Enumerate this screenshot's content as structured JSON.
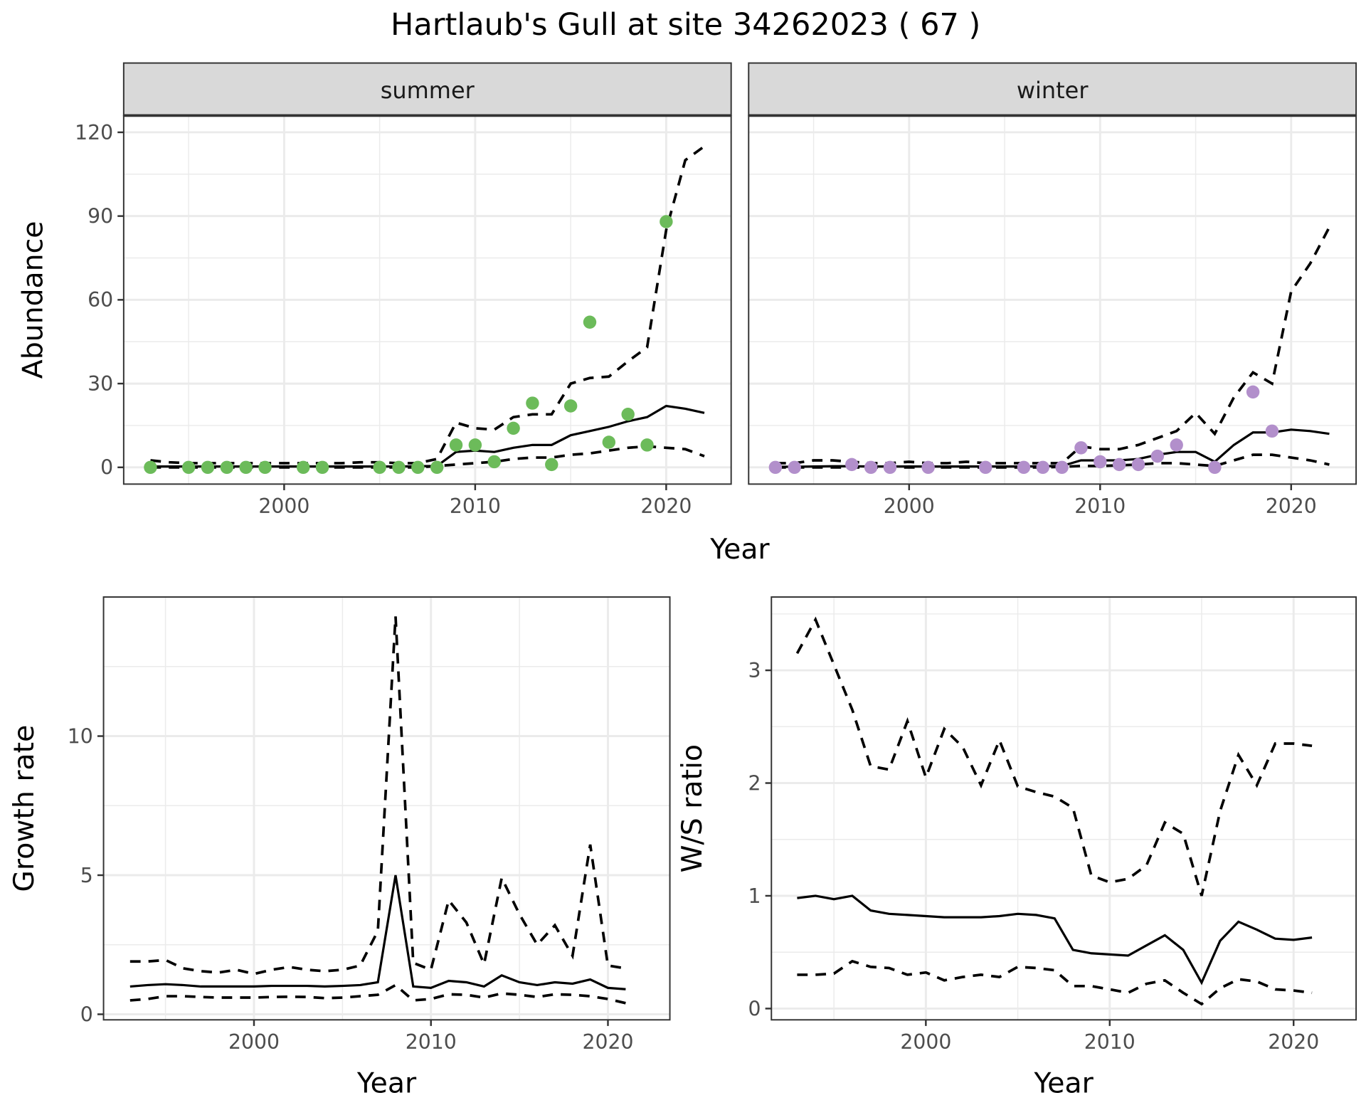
{
  "title": "Hartlaub's Gull at site 34262023 ( 67 )",
  "colors": {
    "summer": "#6CBB5A",
    "winter": "#B28FCB",
    "line": "#000000",
    "strip": "#D9D9D9",
    "grid": "#EBEBEB"
  },
  "chart_data": [
    {
      "type": "scatter+line",
      "facet": "summer",
      "xlabel": "Year",
      "ylabel": "Abundance",
      "xlim": [
        1991.6,
        2023.4
      ],
      "ylim": [
        -6,
        126
      ],
      "xticks": [
        2000,
        2010,
        2020
      ],
      "yticks": [
        0,
        30,
        60,
        90,
        120
      ],
      "points": {
        "x": [
          1993,
          1995,
          1996,
          1997,
          1998,
          1999,
          2001,
          2002,
          2005,
          2006,
          2007,
          2008,
          2009,
          2010,
          2011,
          2012,
          2013,
          2014,
          2015,
          2016,
          2017,
          2018,
          2019,
          2020
        ],
        "y": [
          0,
          0,
          0,
          0,
          0,
          0,
          0,
          0,
          0,
          0,
          0,
          0,
          8,
          8,
          2,
          14,
          23,
          1,
          22,
          52,
          9,
          19,
          8,
          88
        ]
      },
      "years": [
        1993,
        1994,
        1995,
        1996,
        1997,
        1998,
        1999,
        2000,
        2001,
        2002,
        2003,
        2004,
        2005,
        2006,
        2007,
        2008,
        2009,
        2010,
        2011,
        2012,
        2013,
        2014,
        2015,
        2016,
        2017,
        2018,
        2019,
        2020,
        2021,
        2022
      ],
      "mean": [
        0.3,
        0.3,
        0.3,
        0.3,
        0.3,
        0.3,
        0.3,
        0.3,
        0.3,
        0.3,
        0.3,
        0.3,
        0.3,
        0.3,
        0.4,
        0.5,
        5.5,
        6,
        5.5,
        7,
        8,
        8,
        11.5,
        13,
        14.5,
        16.5,
        18,
        22,
        21,
        19.5
      ],
      "upper": [
        2.5,
        1.8,
        1.5,
        1.5,
        1.5,
        1.5,
        1.5,
        1.5,
        1.5,
        1.5,
        1.5,
        1.8,
        1.8,
        1.5,
        1.5,
        3,
        16,
        14,
        13.5,
        18,
        19,
        19,
        30,
        32,
        32.5,
        38,
        43,
        85,
        110,
        115
      ],
      "lower": [
        0,
        0,
        0,
        0,
        0,
        0,
        0,
        0,
        0,
        0,
        0,
        0,
        0,
        0,
        0,
        0.5,
        1,
        1.5,
        2,
        3,
        3.5,
        3.5,
        4.5,
        5,
        6,
        7,
        7.5,
        7,
        6.5,
        4
      ]
    },
    {
      "type": "scatter+line",
      "facet": "winter",
      "xlabel": "Year",
      "ylabel": "Abundance",
      "xlim": [
        1991.6,
        2023.4
      ],
      "ylim": [
        -6,
        126
      ],
      "xticks": [
        2000,
        2010,
        2020
      ],
      "yticks": [
        0,
        30,
        60,
        90,
        120
      ],
      "points": {
        "x": [
          1993,
          1994,
          1997,
          1998,
          1999,
          2001,
          2004,
          2006,
          2007,
          2008,
          2009,
          2010,
          2011,
          2012,
          2013,
          2014,
          2016,
          2018,
          2019
        ],
        "y": [
          0,
          0,
          1,
          0,
          0,
          0,
          0,
          0,
          0,
          0,
          7,
          2,
          1,
          1,
          4,
          8,
          0,
          27,
          13
        ]
      },
      "years": [
        1993,
        1994,
        1995,
        1996,
        1997,
        1998,
        1999,
        2000,
        2001,
        2002,
        2003,
        2004,
        2005,
        2006,
        2007,
        2008,
        2009,
        2010,
        2011,
        2012,
        2013,
        2014,
        2015,
        2016,
        2017,
        2018,
        2019,
        2020,
        2021,
        2022
      ],
      "mean": [
        0.2,
        0.2,
        0.3,
        0.4,
        0.4,
        0.3,
        0.3,
        0.3,
        0.3,
        0.3,
        0.3,
        0.3,
        0.3,
        0.3,
        0.4,
        0.5,
        2.5,
        2.5,
        2.5,
        3,
        4.5,
        5.5,
        5.5,
        2,
        8,
        12.5,
        12.5,
        13.5,
        13,
        12
      ],
      "upper": [
        1.5,
        1.5,
        2.5,
        2.5,
        2,
        1.5,
        1.5,
        2,
        1.5,
        1.5,
        2,
        1.5,
        1.5,
        1.5,
        1.5,
        1.5,
        7.5,
        6.5,
        6.5,
        8,
        10.5,
        13,
        19.5,
        12,
        25,
        34,
        30,
        63,
        73,
        86
      ],
      "lower": [
        0,
        0,
        0,
        0,
        0,
        0,
        0,
        0,
        0,
        0,
        0,
        0,
        0,
        0,
        0,
        0.2,
        0.5,
        0.5,
        0.7,
        1,
        1.5,
        1.5,
        1,
        0.5,
        2.5,
        4.5,
        4.5,
        3.5,
        2.5,
        1
      ]
    },
    {
      "type": "line",
      "xlabel": "Year",
      "ylabel": "Growth rate",
      "xlim": [
        1991.5,
        2023.5
      ],
      "ylim": [
        -0.2,
        15
      ],
      "xticks": [
        2000,
        2010,
        2020
      ],
      "yticks": [
        0,
        5,
        10
      ],
      "years": [
        1993,
        1994,
        1995,
        1996,
        1997,
        1998,
        1999,
        2000,
        2001,
        2002,
        2003,
        2004,
        2005,
        2006,
        2007,
        2008,
        2009,
        2010,
        2011,
        2012,
        2013,
        2014,
        2015,
        2016,
        2017,
        2018,
        2019,
        2020,
        2021
      ],
      "mean": [
        1.0,
        1.05,
        1.08,
        1.05,
        1.0,
        1.0,
        1.0,
        1.0,
        1.02,
        1.02,
        1.02,
        1.0,
        1.02,
        1.05,
        1.15,
        5.0,
        1.0,
        0.95,
        1.2,
        1.15,
        1.0,
        1.4,
        1.15,
        1.05,
        1.15,
        1.1,
        1.25,
        0.95,
        0.9
      ],
      "upper": [
        1.9,
        1.9,
        1.95,
        1.65,
        1.55,
        1.5,
        1.6,
        1.45,
        1.6,
        1.7,
        1.6,
        1.55,
        1.6,
        1.75,
        3.0,
        14.3,
        1.85,
        1.6,
        4.1,
        3.3,
        1.8,
        4.9,
        3.6,
        2.5,
        3.2,
        2.1,
        6.1,
        1.75,
        1.65
      ],
      "lower": [
        0.5,
        0.55,
        0.65,
        0.65,
        0.62,
        0.6,
        0.6,
        0.6,
        0.62,
        0.63,
        0.62,
        0.58,
        0.6,
        0.65,
        0.7,
        1.05,
        0.5,
        0.55,
        0.72,
        0.7,
        0.6,
        0.75,
        0.7,
        0.62,
        0.72,
        0.7,
        0.65,
        0.55,
        0.4
      ]
    },
    {
      "type": "line",
      "xlabel": "Year",
      "ylabel": "W/S ratio",
      "xlim": [
        1991.6,
        2023.4
      ],
      "ylim": [
        -0.1,
        3.65
      ],
      "xticks": [
        2000,
        2010,
        2020
      ],
      "yticks": [
        0,
        1,
        2,
        3
      ],
      "years": [
        1993,
        1994,
        1995,
        1996,
        1997,
        1998,
        1999,
        2000,
        2001,
        2002,
        2003,
        2004,
        2005,
        2006,
        2007,
        2008,
        2009,
        2010,
        2011,
        2012,
        2013,
        2014,
        2015,
        2016,
        2017,
        2018,
        2019,
        2020,
        2021
      ],
      "mean": [
        0.98,
        1.0,
        0.97,
        1.0,
        0.87,
        0.84,
        0.83,
        0.82,
        0.81,
        0.81,
        0.81,
        0.82,
        0.84,
        0.83,
        0.8,
        0.52,
        0.49,
        0.48,
        0.47,
        0.56,
        0.65,
        0.52,
        0.23,
        0.6,
        0.77,
        0.7,
        0.62,
        0.61,
        0.63
      ],
      "upper": [
        3.15,
        3.45,
        3.05,
        2.65,
        2.15,
        2.12,
        2.55,
        2.05,
        2.48,
        2.32,
        1.98,
        2.38,
        1.97,
        1.92,
        1.88,
        1.78,
        1.18,
        1.12,
        1.15,
        1.27,
        1.65,
        1.55,
        1.0,
        1.75,
        2.25,
        1.98,
        2.35,
        2.35,
        2.33
      ],
      "lower": [
        0.3,
        0.3,
        0.31,
        0.42,
        0.37,
        0.36,
        0.3,
        0.32,
        0.25,
        0.28,
        0.3,
        0.28,
        0.37,
        0.36,
        0.34,
        0.2,
        0.2,
        0.17,
        0.14,
        0.22,
        0.25,
        0.14,
        0.04,
        0.18,
        0.26,
        0.24,
        0.17,
        0.16,
        0.14
      ]
    }
  ]
}
